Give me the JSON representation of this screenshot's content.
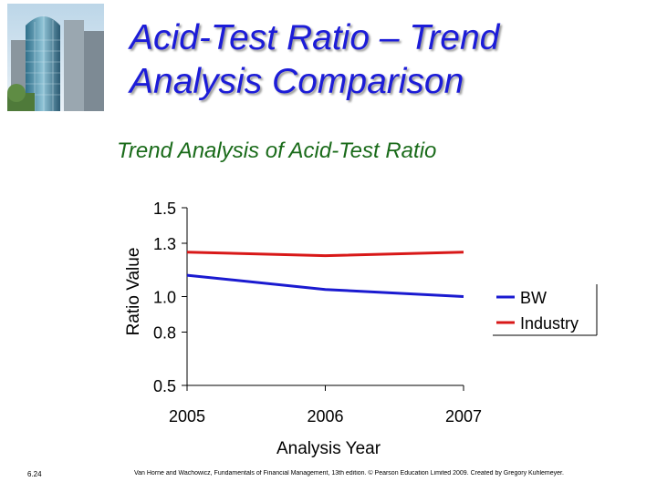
{
  "slide": {
    "title": "Acid-Test Ratio – Trend\nAnalysis Comparison",
    "page_number": "6.24",
    "credit": "Van Horne and Wachowicz, Fundamentals of Financial Management, 13th edition. © Pearson Education Limited 2009. Created by Gregory Kuhlemeyer.",
    "photo_icon": "skyscraper-photo-icon"
  },
  "colors": {
    "title": "#1c1cd8",
    "chart_title": "#1a6b1a",
    "bw": "#1a1ad0",
    "industry": "#d81818"
  },
  "chart_data": {
    "type": "line",
    "title": "Trend Analysis of Acid-Test Ratio",
    "xlabel": "Analysis Year",
    "ylabel": "Ratio Value",
    "x": [
      "2005",
      "2006",
      "2007"
    ],
    "yticks": [
      "0.5",
      "0.8",
      "1.0",
      "1.3",
      "1.5"
    ],
    "ylim": [
      0.5,
      1.5
    ],
    "series": [
      {
        "name": "BW",
        "color": "#1a1ad0",
        "values": [
          1.12,
          1.04,
          1.0
        ]
      },
      {
        "name": "Industry",
        "color": "#d81818",
        "values": [
          1.25,
          1.23,
          1.25
        ]
      }
    ],
    "grid": false,
    "legend_position": "right"
  }
}
